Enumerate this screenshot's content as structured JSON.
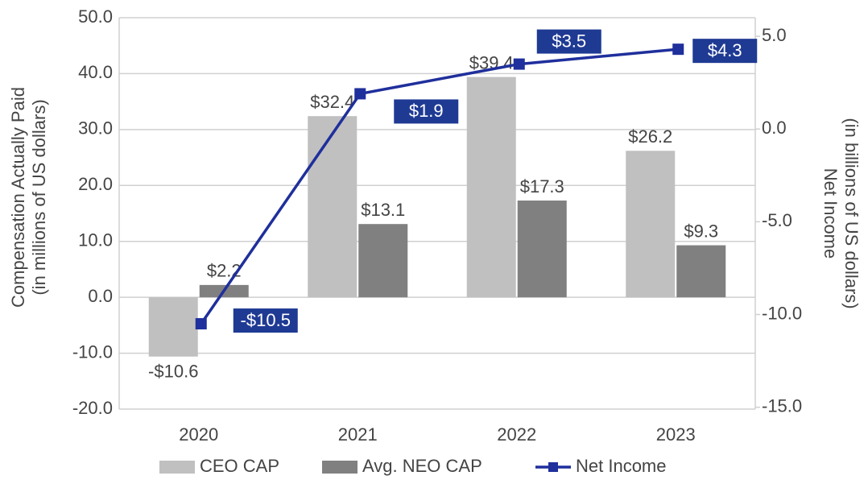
{
  "chart_data": {
    "type": "bar",
    "ylabel": [
      "Compensation Actually Paid",
      "(in millions of US dollars)"
    ],
    "y2label": [
      "Net Income",
      "(in billions of US dollars)"
    ],
    "categories": [
      "2020",
      "2021",
      "2022",
      "2023"
    ],
    "series": [
      {
        "name": "CEO CAP",
        "color": "#c0c0c0",
        "values": [
          -10.6,
          32.4,
          39.4,
          26.2
        ],
        "value_labels": [
          "-$10.6",
          "$32.4",
          "$39.4",
          "$26.2"
        ]
      },
      {
        "name": "Avg. NEO CAP",
        "color": "#808080",
        "values": [
          2.2,
          13.1,
          17.3,
          9.3
        ],
        "value_labels": [
          "$2.2",
          "$13.1",
          "$17.3",
          "$9.3"
        ]
      },
      {
        "name": "Net Income",
        "type": "line",
        "axis": "y2",
        "color": "#1f2f9c",
        "values": [
          -10.5,
          1.9,
          3.5,
          4.3
        ],
        "value_labels": [
          "-$10.5",
          "$1.9",
          "$3.5",
          "$4.3"
        ]
      }
    ],
    "ylim": [
      -20,
      50
    ],
    "yticks": [
      {
        "value": -20,
        "label": "-20.0"
      },
      {
        "value": -10,
        "label": "-10.0"
      },
      {
        "value": 0,
        "label": "0.0"
      },
      {
        "value": 10,
        "label": "10.0"
      },
      {
        "value": 20,
        "label": "20.0"
      },
      {
        "value": 30,
        "label": "30.0"
      },
      {
        "value": 40,
        "label": "40.0"
      },
      {
        "value": 50,
        "label": "50.0"
      }
    ],
    "y2lim": [
      -15.1,
      6
    ],
    "y2ticks": [
      {
        "value": -15,
        "label": "-15.0"
      },
      {
        "value": -10,
        "label": "-10.0"
      },
      {
        "value": -5,
        "label": "-5.0"
      },
      {
        "value": 0,
        "label": "0.0"
      },
      {
        "value": 5,
        "label": "5.0"
      }
    ],
    "grid": true,
    "legend": "bottom"
  }
}
